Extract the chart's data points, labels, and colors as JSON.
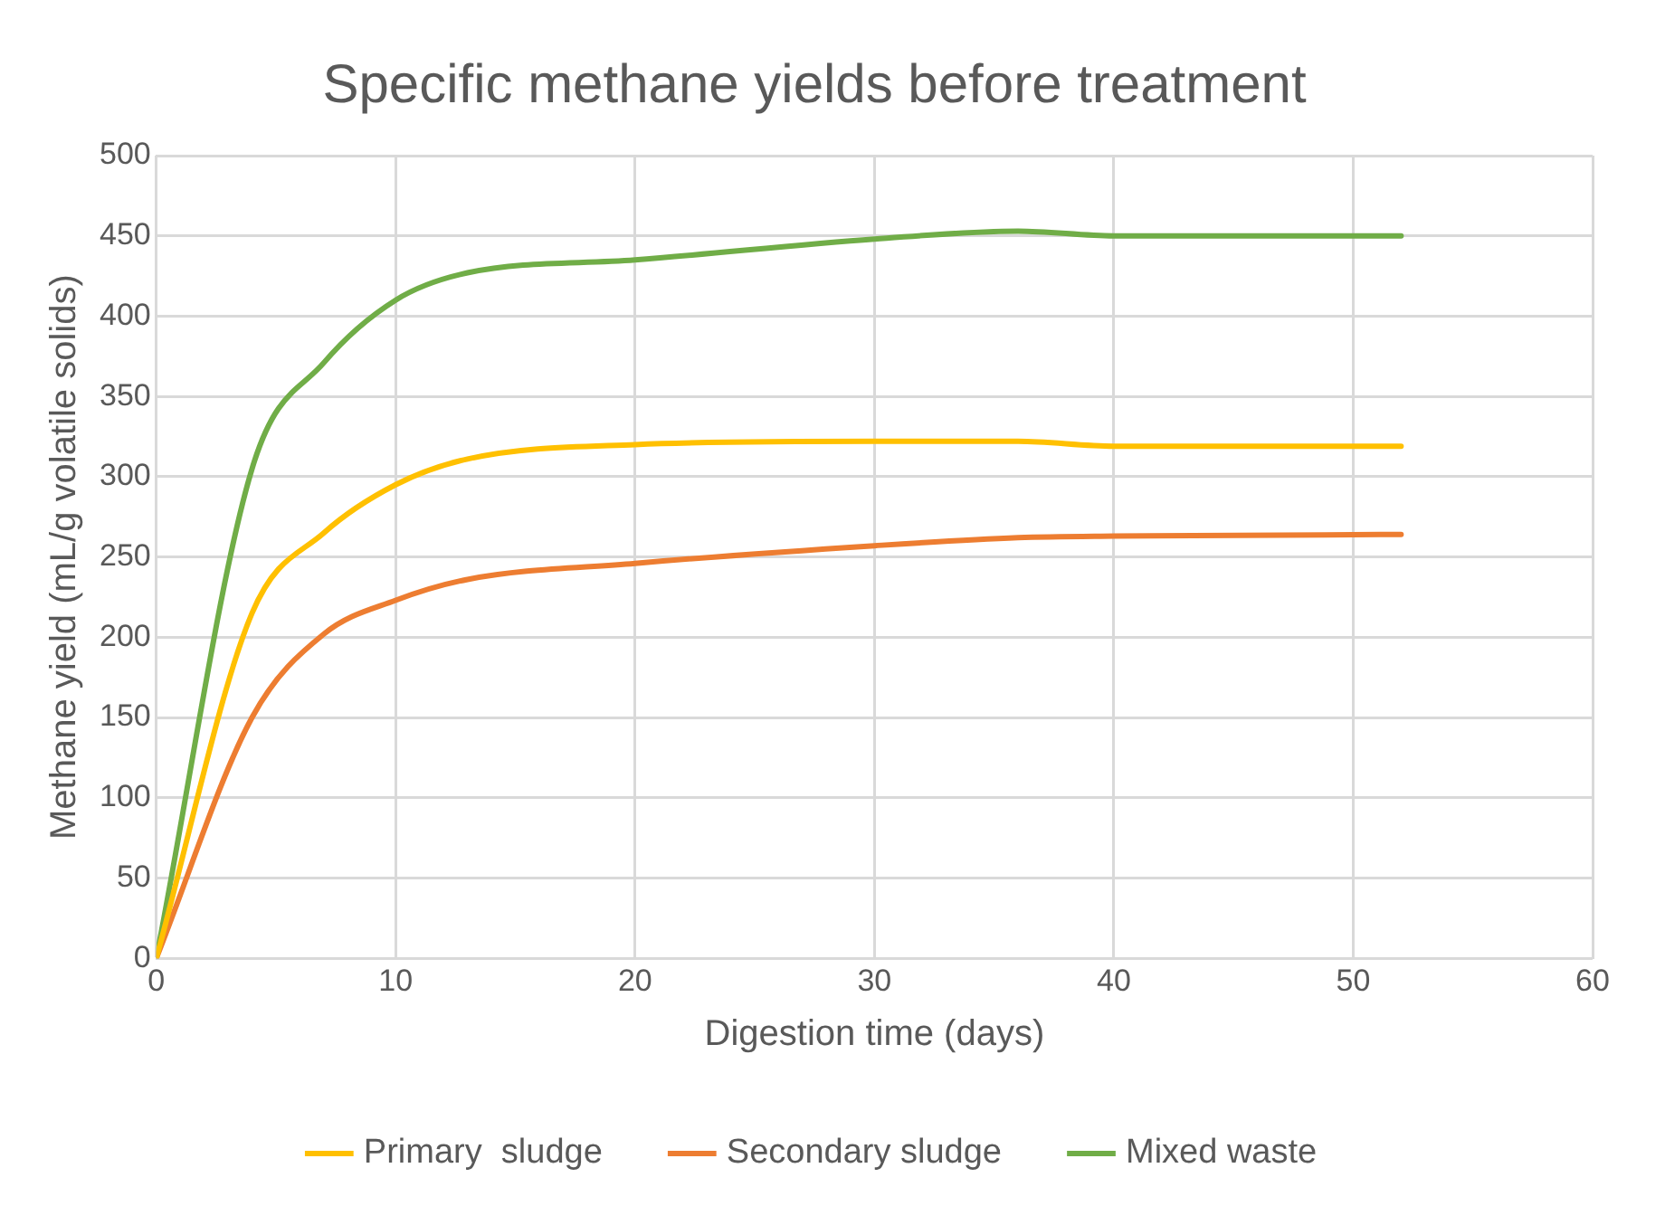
{
  "chart_data": {
    "type": "line",
    "title": "Specific methane yields before treatment",
    "xlabel": "Digestion time (days)",
    "ylabel": "Methane yield (mL/g volatile solids)",
    "x": [
      0,
      4,
      7,
      10,
      13,
      20,
      30,
      36,
      40,
      52
    ],
    "series": [
      {
        "name": "Primary  sludge",
        "color": "#ffc000",
        "values": [
          0,
          215,
          265,
          295,
          311,
          320,
          322,
          322,
          319,
          319
        ]
      },
      {
        "name": "Secondary sludge",
        "color": "#ed7d31",
        "values": [
          0,
          150,
          202,
          223,
          236,
          246,
          257,
          262,
          263,
          264
        ]
      },
      {
        "name": "Mixed waste",
        "color": "#70ad47",
        "values": [
          0,
          305,
          371,
          410,
          427,
          435,
          448,
          453,
          450,
          450
        ]
      }
    ],
    "xlim": [
      0,
      60
    ],
    "xticks": [
      0,
      10,
      20,
      30,
      40,
      50,
      60
    ],
    "ylim": [
      0,
      500
    ],
    "yticks": [
      0,
      50,
      100,
      150,
      200,
      250,
      300,
      350,
      400,
      450,
      500
    ],
    "grid": true,
    "legend": "bottom",
    "marker": "none",
    "line_style": "solid"
  }
}
